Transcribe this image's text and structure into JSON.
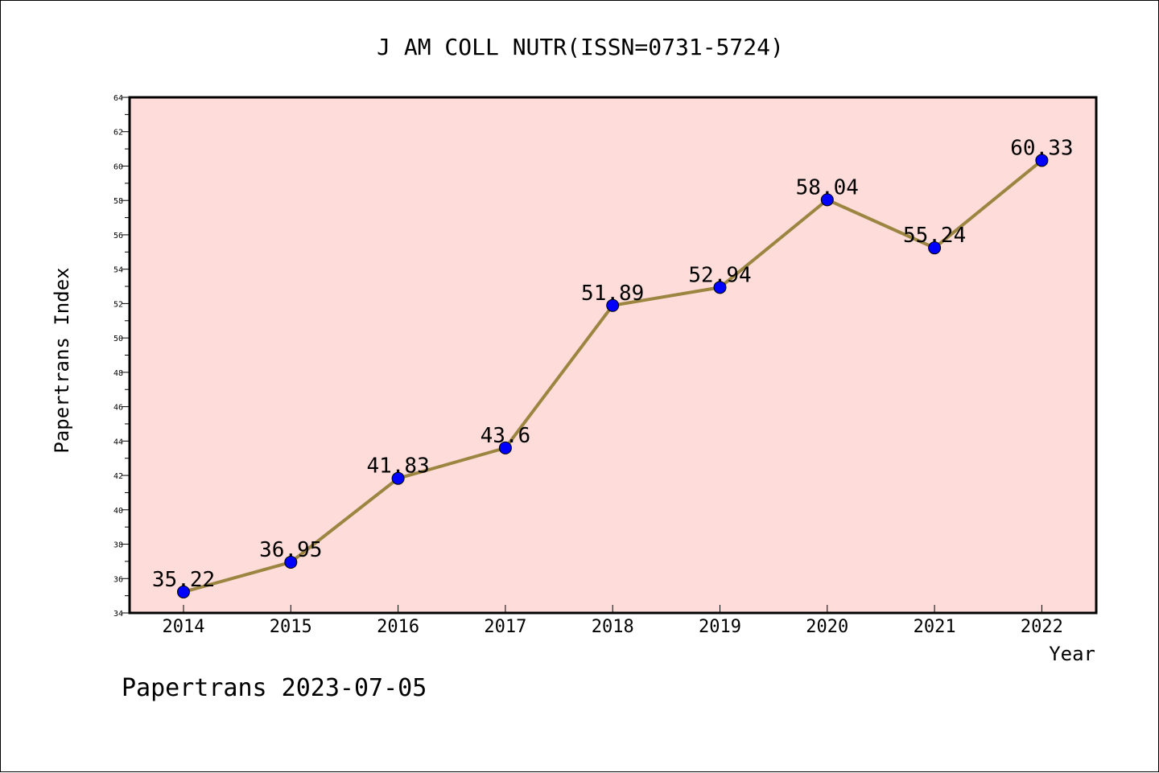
{
  "chart_data": {
    "type": "line",
    "title": "J AM COLL NUTR(ISSN=0731-5724)",
    "xlabel": "Year",
    "ylabel": "Papertrans Index",
    "footer": "Papertrans 2023-07-05",
    "ylim": [
      34,
      64
    ],
    "ytick_step": 2,
    "categories": [
      "2014",
      "2015",
      "2016",
      "2017",
      "2018",
      "2019",
      "2020",
      "2021",
      "2022"
    ],
    "series": [
      {
        "values": [
          35.22,
          36.95,
          41.83,
          43.6,
          51.89,
          52.94,
          58.04,
          55.24,
          60.33
        ],
        "labels": [
          "35.22",
          "36.95",
          "41.83",
          "43.6",
          "51.89",
          "52.94",
          "58.04",
          "55.24",
          "60.33"
        ]
      }
    ],
    "grid": false,
    "colors": {
      "plot_bg": "#fddcd9",
      "line": "#9b8540",
      "marker": "#0000ff"
    }
  }
}
